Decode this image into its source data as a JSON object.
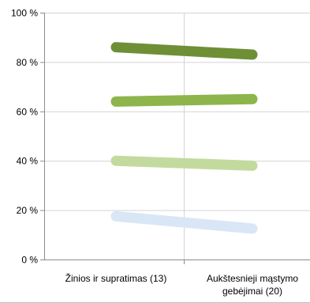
{
  "chart_data": {
    "type": "line",
    "categories": [
      "Žinios ir supratimas (13)",
      "Aukštesnieji mąstymo gebėjimai (20)"
    ],
    "category_lines": [
      [
        "Žinios ir supratimas (13)"
      ],
      [
        "Aukštesnieji mąstymo",
        "gebėjimai (20)"
      ]
    ],
    "series": [
      {
        "values": [
          86,
          83
        ],
        "color": "#6e8f36"
      },
      {
        "values": [
          64,
          65
        ],
        "color": "#8db54c"
      },
      {
        "values": [
          40,
          38
        ],
        "color": "#c3da9f"
      },
      {
        "values": [
          17.5,
          12.5
        ],
        "color": "#d9e6f6"
      }
    ],
    "yticks": [
      "0 %",
      "20 %",
      "40 %",
      "60 %",
      "80 %",
      "100 %"
    ],
    "ylim": [
      0,
      100
    ],
    "grid": true
  }
}
